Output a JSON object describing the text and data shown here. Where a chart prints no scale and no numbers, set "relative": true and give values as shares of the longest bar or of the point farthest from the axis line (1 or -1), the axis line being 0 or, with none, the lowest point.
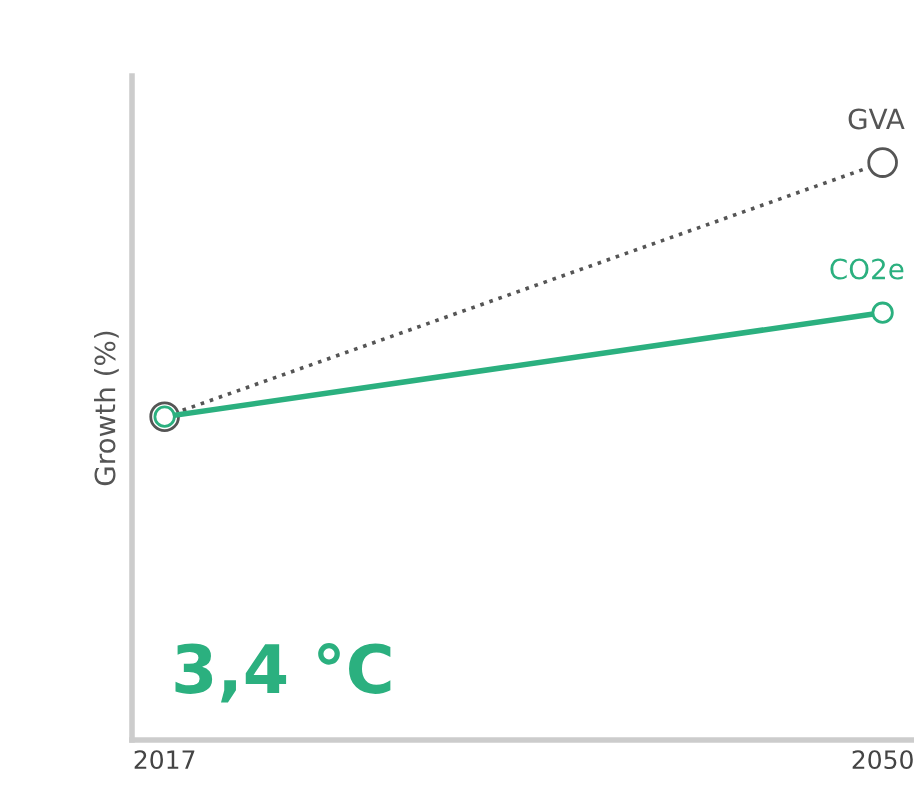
{
  "chart_data": {
    "type": "line",
    "ylabel": "Growth (%)",
    "relative": true,
    "x": [
      2017,
      2050
    ],
    "xlim": [
      2015.5,
      2051.4
    ],
    "xticks": [
      2017,
      2050
    ],
    "marker": "circle",
    "grid": false,
    "legend": false,
    "series": [
      {
        "name": "GVA",
        "color": "#555555",
        "line_style": "dotted",
        "values": [
          0.56,
          1
        ]
      },
      {
        "name": "CO2e",
        "color": "#2bb07f",
        "line_style": "solid",
        "values": [
          0.56,
          0.74
        ]
      }
    ],
    "annotations": [
      "3,4 °C"
    ]
  }
}
